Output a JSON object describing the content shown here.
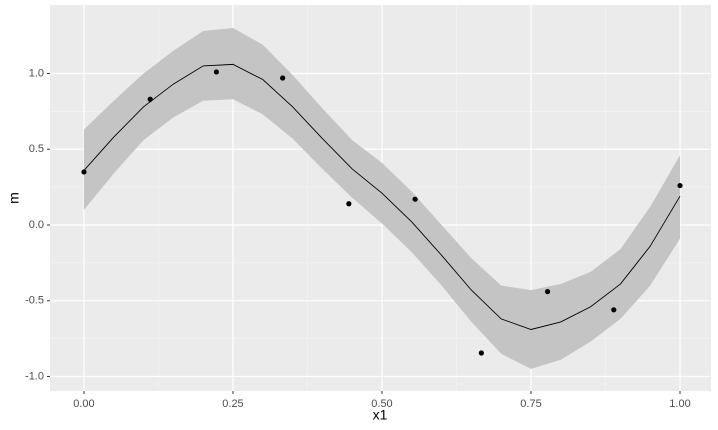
{
  "chart_data": {
    "type": "scatter",
    "x_label": "x1",
    "y_label": "m",
    "x": [
      0,
      0.1111,
      0.2222,
      0.3333,
      0.4444,
      0.5556,
      0.6667,
      0.7778,
      0.8889,
      1
    ],
    "y": [
      0.35,
      0.83,
      1.01,
      0.97,
      0.14,
      0.17,
      -0.845,
      -0.44,
      -0.56,
      0.26
    ],
    "point_color": "#000000",
    "smooth": {
      "color": "#000000",
      "band_color": "#c4c4c4",
      "x": [
        0,
        0.05,
        0.1,
        0.15,
        0.2,
        0.25,
        0.3,
        0.35,
        0.4,
        0.45,
        0.5,
        0.55,
        0.6,
        0.65,
        0.7,
        0.75,
        0.8,
        0.85,
        0.9,
        0.95,
        1
      ],
      "y": [
        0.36,
        0.58,
        0.78,
        0.93,
        1.05,
        1.06,
        0.96,
        0.78,
        0.57,
        0.37,
        0.21,
        0.02,
        -0.2,
        -0.43,
        -0.62,
        -0.69,
        -0.64,
        -0.54,
        -0.39,
        -0.14,
        0.19
      ],
      "lower": [
        0.1,
        0.34,
        0.56,
        0.71,
        0.82,
        0.83,
        0.73,
        0.57,
        0.37,
        0.18,
        0.01,
        -0.18,
        -0.4,
        -0.64,
        -0.85,
        -0.95,
        -0.89,
        -0.77,
        -0.62,
        -0.4,
        -0.09
      ],
      "upper": [
        0.63,
        0.82,
        1.0,
        1.15,
        1.28,
        1.3,
        1.19,
        0.99,
        0.77,
        0.56,
        0.41,
        0.22,
        0.0,
        -0.22,
        -0.4,
        -0.43,
        -0.39,
        -0.31,
        -0.16,
        0.12,
        0.46
      ]
    },
    "xlim": [
      -0.057,
      1.052
    ],
    "ylim": [
      -1.096,
      1.452
    ],
    "xticks": [
      {
        "value": 0,
        "label": "0.00"
      },
      0.25,
      {
        "value": 0.5,
        "label": "0.50"
      },
      0.75,
      {
        "value": 1,
        "label": "1.00"
      }
    ],
    "yticks": [
      {
        "value": -1,
        "label": "-1.0"
      },
      -0.5,
      {
        "value": 0,
        "label": "0.0"
      },
      0.5,
      {
        "value": 1,
        "label": "1.0"
      }
    ],
    "grid": true,
    "minor_grid": true
  }
}
